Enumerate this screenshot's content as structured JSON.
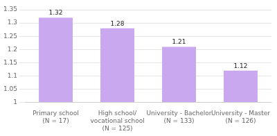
{
  "chart_data": {
    "type": "bar",
    "categories": [
      "Primary school\n(N = 17)",
      "High school/\nvocational school\n(N = 125)",
      "University - Bachelor\n(N = 133)",
      "University - Master\n(N = 126)"
    ],
    "values": [
      1.32,
      1.28,
      1.21,
      1.12
    ],
    "color": "#c9a8f0",
    "ylim": [
      1.0,
      1.35
    ],
    "yticks": [
      1,
      1.05,
      1.1,
      1.15,
      1.2,
      1.25,
      1.3,
      1.35
    ],
    "grid": true,
    "data_labels": true
  }
}
